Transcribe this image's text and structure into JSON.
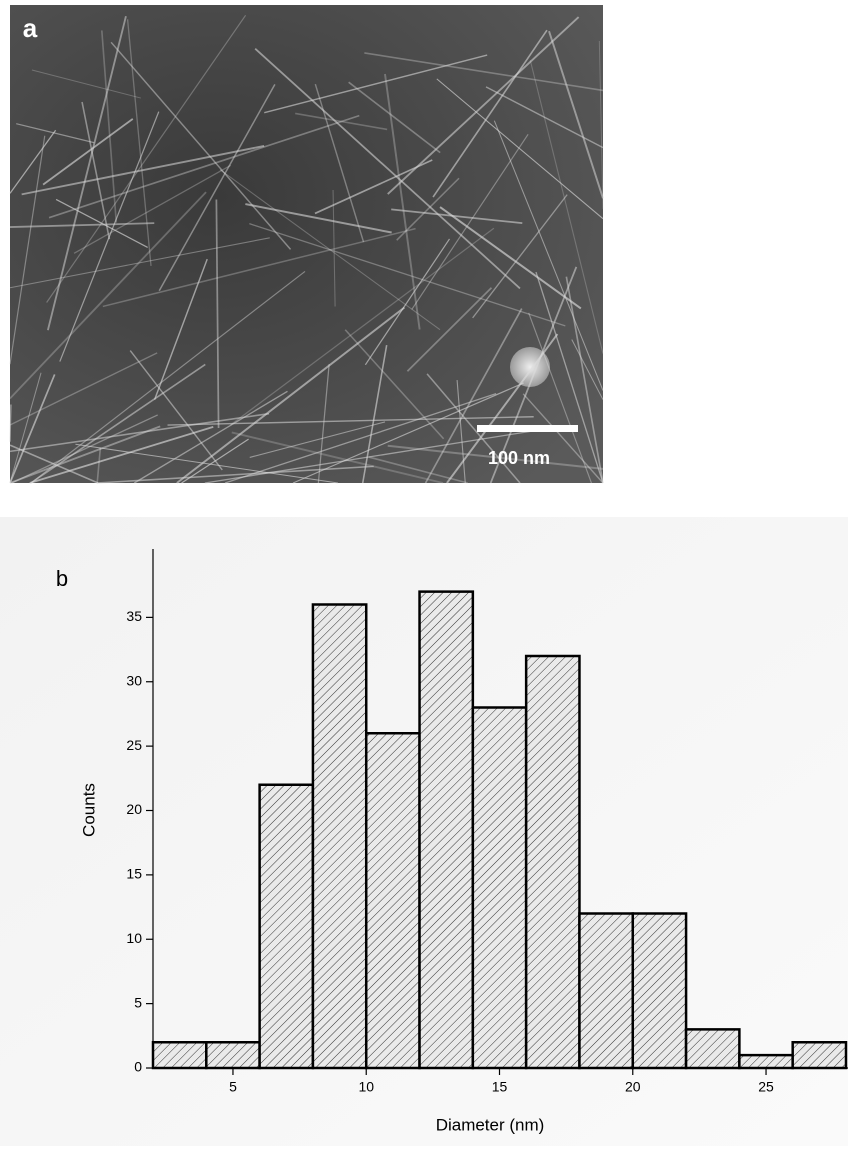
{
  "image": {
    "label": "a",
    "scale_bar": "100 nm"
  },
  "chart_data": {
    "type": "histogram",
    "panel_label": "b",
    "xlabel": "Diameter (nm)",
    "ylabel": "Counts",
    "bins": [
      2,
      4,
      6,
      8,
      10,
      12,
      14,
      16,
      18,
      20,
      22,
      24,
      26,
      28
    ],
    "values": [
      2,
      2,
      22,
      36,
      26,
      37,
      28,
      32,
      12,
      12,
      3,
      1,
      2
    ],
    "color": "#000000",
    "xlim": [
      2,
      28
    ],
    "ylim": [
      0,
      40
    ],
    "xticks": [
      5,
      10,
      15,
      20,
      25
    ],
    "yticks": [
      0,
      5,
      10,
      15,
      20,
      25,
      30,
      35
    ]
  }
}
